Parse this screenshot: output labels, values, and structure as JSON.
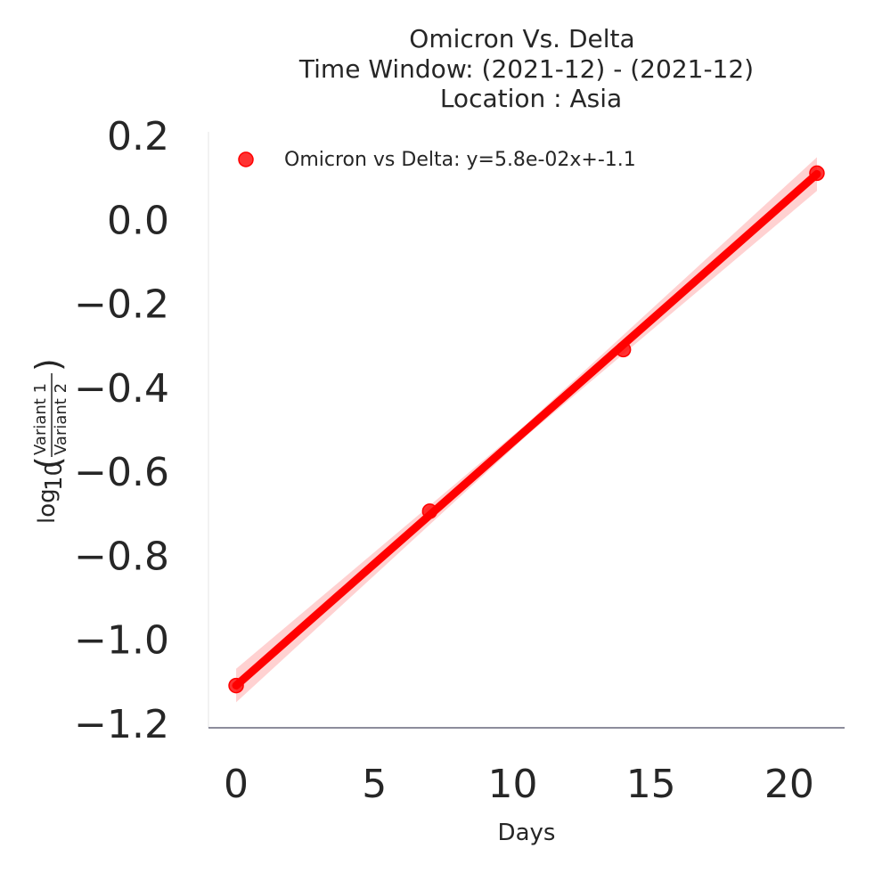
{
  "chart_data": {
    "type": "scatter",
    "title_lines": [
      "Omicron Vs. Delta",
      "Time Window: (2021-12) - (2021-12)",
      "Location : Asia"
    ],
    "xlabel": "Days",
    "ylabel_parts": {
      "log": "log",
      "base": "10",
      "numerator": "Variant 1",
      "denominator": "Variant 2"
    },
    "xlim": [
      -1,
      22
    ],
    "ylim": [
      -1.2,
      0.2
    ],
    "xticks": [
      0,
      5,
      10,
      15,
      20
    ],
    "yticks": [
      0.2,
      0.0,
      -0.2,
      -0.4,
      -0.6,
      -0.8,
      -1.0,
      -1.2
    ],
    "ytick_labels": [
      "0.2",
      "0.0",
      "−0.2",
      "−0.4",
      "−0.6",
      "−0.8",
      "−1.0",
      "−1.2"
    ],
    "grid": false,
    "legend_position": "top-left",
    "series": [
      {
        "name": "Omicron vs Delta: y=5.8e-02x+-1.1",
        "color": "#ff0000",
        "points": [
          {
            "x": 0,
            "y": -1.11
          },
          {
            "x": 7,
            "y": -0.695
          },
          {
            "x": 14,
            "y": -0.31
          },
          {
            "x": 21,
            "y": 0.11
          }
        ],
        "fit": {
          "slope": 0.058,
          "intercept": -1.11
        },
        "ci_color": "#ffb3b3"
      }
    ]
  }
}
